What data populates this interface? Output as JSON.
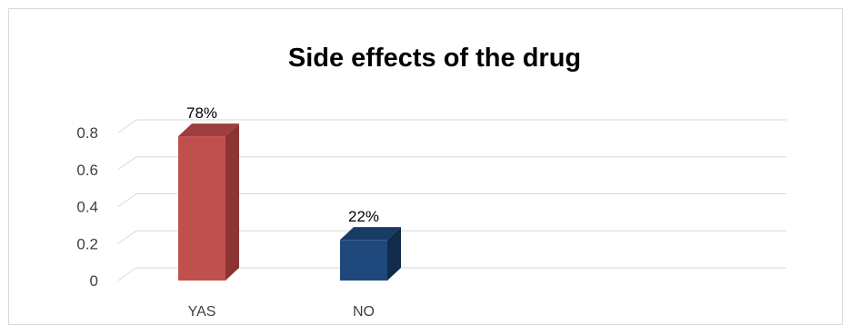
{
  "chart_data": {
    "type": "bar",
    "title": "Side effects of the drug",
    "xlabel": "",
    "ylabel": "",
    "categories": [
      "YAS",
      "NO"
    ],
    "values": [
      0.78,
      0.22
    ],
    "data_labels": [
      "78%",
      "22%"
    ],
    "yticks": [
      "0",
      "0.2",
      "0.4",
      "0.6",
      "0.8"
    ],
    "ylim": [
      0,
      0.8
    ],
    "grid": true,
    "legend": "none",
    "style": "3d-column",
    "colors": {
      "YAS": {
        "front": "#c0504d",
        "side": "#8b3432",
        "top": "#9c3e3b"
      },
      "NO": {
        "front": "#1f497d",
        "side": "#112b4b",
        "top": "#183b66"
      },
      "grid": "#d9d9d9"
    }
  }
}
